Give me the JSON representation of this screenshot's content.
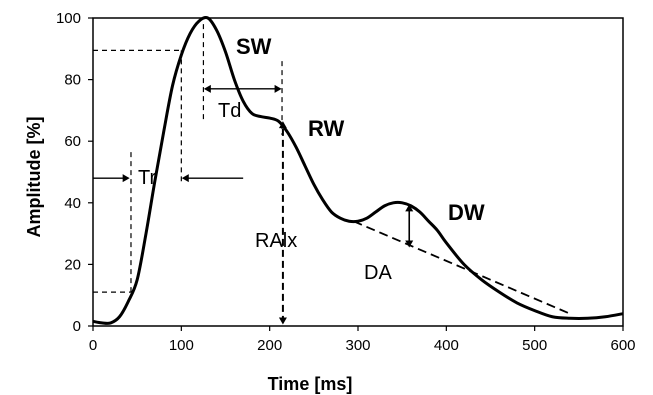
{
  "chart_data": {
    "type": "line",
    "title": "",
    "xlabel": "Time [ms]",
    "ylabel": "Amplitude [%]",
    "xlim": [
      0,
      600
    ],
    "ylim": [
      0,
      100
    ],
    "xticks": [
      0,
      100,
      200,
      300,
      400,
      500,
      600
    ],
    "yticks": [
      0,
      20,
      40,
      60,
      80,
      100
    ],
    "grid": false,
    "legend": "none",
    "line_color": "#000000",
    "series": [
      {
        "x": [
          0,
          10,
          20,
          30,
          40,
          50,
          60,
          70,
          80,
          90,
          100,
          110,
          120,
          130,
          140,
          150,
          160,
          170,
          180,
          190,
          200,
          210,
          220,
          230,
          240,
          250,
          260,
          270,
          280,
          290,
          300,
          310,
          320,
          330,
          340,
          350,
          360,
          370,
          380,
          390,
          400,
          420,
          440,
          460,
          480,
          500,
          520,
          540,
          560,
          580,
          600
        ],
        "y": [
          1.5,
          1,
          1,
          3,
          8,
          15,
          30,
          47,
          63,
          78,
          88,
          95,
          99,
          100,
          96,
          89,
          80,
          73,
          69,
          68,
          67.5,
          66.5,
          63,
          58,
          52,
          46,
          41,
          37,
          35,
          34,
          34,
          35,
          37,
          39,
          40,
          40,
          39,
          37,
          34,
          31,
          27,
          20,
          15,
          11,
          7.5,
          5,
          3,
          2.5,
          2.5,
          3,
          4
        ]
      }
    ],
    "annotations": {
      "sw": "SW",
      "rw": "RW",
      "dw": "DW",
      "td": "Td",
      "tr": "Tr",
      "ralx": "RAlx",
      "da": "DA"
    }
  }
}
